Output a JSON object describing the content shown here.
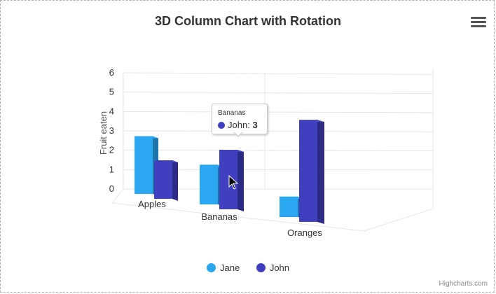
{
  "chart_title": "3D Column Chart with Rotation",
  "menu_icon": "hamburger-menu-icon",
  "credits": "Highcharts.com",
  "tooltip": {
    "category": "Bananas",
    "series": "John",
    "value": "3"
  },
  "colors": {
    "jane": "#2ba7f2",
    "john": "#3f3fbf",
    "grid": "#e6e6e6"
  },
  "chart_data": {
    "type": "bar",
    "options3d": {
      "enabled": true,
      "rotated": true
    },
    "title": "3D Column Chart with Rotation",
    "xlabel": "",
    "ylabel": "Fruit eaten",
    "ylim": [
      0,
      6
    ],
    "yticks": [
      "0",
      "1",
      "2",
      "3",
      "4",
      "5",
      "6"
    ],
    "categories": [
      "Apples",
      "Bananas",
      "Oranges"
    ],
    "series": [
      {
        "name": "Jane",
        "values": [
          3,
          2,
          1
        ],
        "color": "#2ba7f2"
      },
      {
        "name": "John",
        "values": [
          2,
          3,
          5
        ],
        "color": "#3f3fbf"
      }
    ],
    "legend": "bottom-center",
    "grid": true
  }
}
